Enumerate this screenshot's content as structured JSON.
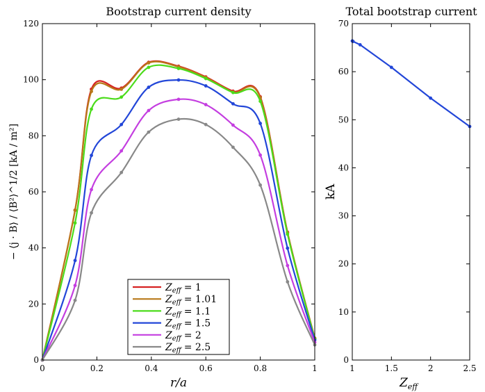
{
  "chart_data": [
    {
      "type": "line",
      "title": "Bootstrap current density",
      "xlabel": "r/a",
      "ylabel": "− ⟨j · B⟩ / ⟨B²⟩^1/2 [kA / m²]",
      "xlim": [
        0,
        1
      ],
      "ylim": [
        0,
        120
      ],
      "xticks": [
        "0",
        "0.2",
        "0.4",
        "0.6",
        "0.8",
        "1"
      ],
      "yticks": [
        "0",
        "20",
        "40",
        "60",
        "80",
        "100",
        "120"
      ],
      "legend_position": "bottom-center",
      "x": [
        0,
        0.12,
        0.18,
        0.29,
        0.39,
        0.5,
        0.6,
        0.7,
        0.8,
        0.9,
        1.0
      ],
      "series": [
        {
          "name": "Zeff = 1",
          "legend_label": "Z",
          "legend_sub": "eff",
          "legend_value": "= 1",
          "color": "#d62222",
          "values": [
            0,
            53.5,
            96.6,
            97.0,
            106.2,
            104.8,
            101.0,
            95.9,
            93.9,
            45.6,
            7.8
          ]
        },
        {
          "name": "Zeff = 1.01",
          "legend_label": "Z",
          "legend_sub": "eff",
          "legend_value": "= 1.01",
          "color": "#b8791a",
          "values": [
            0,
            53.4,
            95.8,
            96.6,
            106.0,
            104.6,
            100.8,
            95.6,
            93.6,
            45.4,
            7.7
          ]
        },
        {
          "name": "Zeff = 1.1",
          "legend_label": "Z",
          "legend_sub": "eff",
          "legend_value": "= 1.1",
          "color": "#4bdc1b",
          "values": [
            0,
            48.9,
            89.5,
            93.8,
            104.4,
            104.0,
            100.4,
            95.4,
            92.3,
            44.9,
            7.5
          ]
        },
        {
          "name": "Zeff = 1.5",
          "legend_label": "Z",
          "legend_sub": "eff",
          "legend_value": "= 1.5",
          "color": "#2246d8",
          "values": [
            0,
            35.5,
            73.0,
            84.0,
            97.3,
            99.9,
            97.8,
            91.4,
            84.4,
            39.9,
            7.1
          ]
        },
        {
          "name": "Zeff = 2",
          "legend_label": "Z",
          "legend_sub": "eff",
          "legend_value": "= 2",
          "color": "#c43ee0",
          "values": [
            0,
            26.6,
            60.8,
            74.6,
            89.0,
            93.0,
            91.1,
            83.8,
            73.1,
            33.7,
            6.3
          ]
        },
        {
          "name": "Zeff = 2.5",
          "legend_label": "Z",
          "legend_sub": "eff",
          "legend_value": "= 2.5",
          "color": "#888888",
          "values": [
            0,
            21.3,
            52.5,
            66.9,
            81.3,
            85.9,
            84.0,
            75.9,
            62.4,
            27.9,
            5.4
          ]
        }
      ]
    },
    {
      "type": "line",
      "title": "Total bootstrap current",
      "xlabel": "Zeff",
      "xlabel_main": "Z",
      "xlabel_sub": "eff",
      "ylabel": "kA",
      "xlim": [
        1,
        2.5
      ],
      "ylim": [
        0,
        70
      ],
      "xticks": [
        "1",
        "1.5",
        "2",
        "2.5"
      ],
      "yticks": [
        "0",
        "10",
        "20",
        "30",
        "40",
        "50",
        "60",
        "70"
      ],
      "series": [
        {
          "name": "Total bootstrap current",
          "color": "#2246d8",
          "x": [
            1.0,
            1.01,
            1.1,
            1.5,
            2.0,
            2.5
          ],
          "values": [
            66.4,
            66.3,
            65.6,
            60.9,
            54.5,
            48.6
          ]
        }
      ]
    }
  ]
}
